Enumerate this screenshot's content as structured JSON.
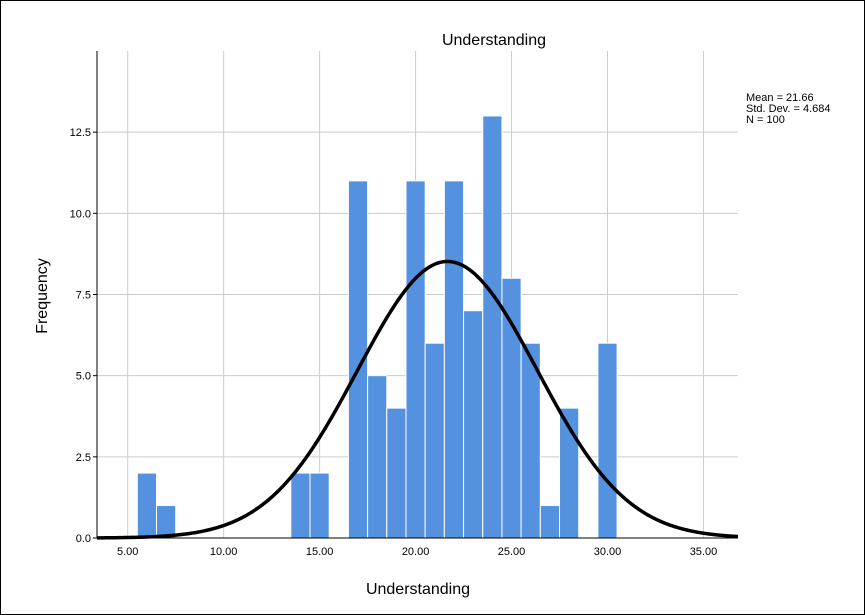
{
  "chart_data": {
    "type": "bar",
    "title": "Understanding",
    "xlabel": "Understanding",
    "ylabel": "Frequency",
    "xlim": [
      3.4,
      36.8
    ],
    "ylim": [
      0,
      15
    ],
    "x_ticks": [
      5,
      10,
      15,
      20,
      25,
      30,
      35
    ],
    "x_tick_labels": [
      "5.00",
      "10.00",
      "15.00",
      "20.00",
      "25.00",
      "30.00",
      "35.00"
    ],
    "y_ticks": [
      0,
      2.5,
      5,
      7.5,
      10,
      12.5
    ],
    "y_tick_labels": [
      "0.0",
      "2.5",
      "5.0",
      "7.5",
      "10.0",
      "12.5"
    ],
    "grid": true,
    "bin_width": 1,
    "bins": [
      {
        "x": 6,
        "count": 2
      },
      {
        "x": 7,
        "count": 1
      },
      {
        "x": 14,
        "count": 2
      },
      {
        "x": 15,
        "count": 2
      },
      {
        "x": 17,
        "count": 11
      },
      {
        "x": 18,
        "count": 5
      },
      {
        "x": 19,
        "count": 4
      },
      {
        "x": 20,
        "count": 11
      },
      {
        "x": 21,
        "count": 6
      },
      {
        "x": 22,
        "count": 11
      },
      {
        "x": 23,
        "count": 7
      },
      {
        "x": 24,
        "count": 13
      },
      {
        "x": 25,
        "count": 8
      },
      {
        "x": 26,
        "count": 6
      },
      {
        "x": 27,
        "count": 1
      },
      {
        "x": 28,
        "count": 4
      },
      {
        "x": 30,
        "count": 6
      }
    ],
    "normal_curve": {
      "mean": 21.66,
      "sd": 4.684,
      "n": 100
    },
    "bar_color": "#5492e0",
    "curve_color": "#000000",
    "stats_text": [
      "Mean = 21.66",
      "Std. Dev. = 4.684",
      "N = 100"
    ]
  }
}
